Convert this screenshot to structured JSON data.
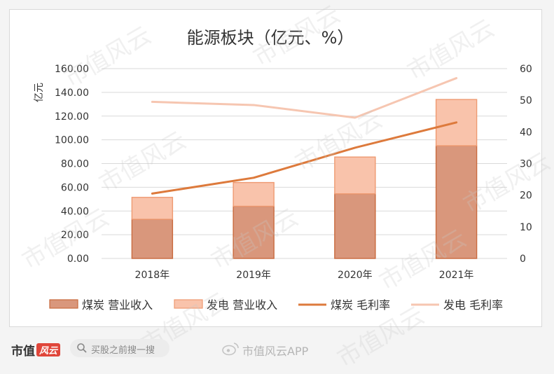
{
  "chart_data": {
    "type": "bar+line",
    "title": "能源板块（亿元、%）",
    "ylabel": "亿元",
    "ylim": [
      0,
      160
    ],
    "y2lim": [
      0,
      60
    ],
    "yticks": [
      "0.00",
      "20.00",
      "40.00",
      "60.00",
      "80.00",
      "100.00",
      "120.00",
      "140.00",
      "160.00"
    ],
    "y2ticks": [
      "0",
      "10",
      "20",
      "30",
      "40",
      "50",
      "60"
    ],
    "categories": [
      "2018年",
      "2019年",
      "2020年",
      "2021年"
    ],
    "bar_series": [
      {
        "name": "煤炭 营业收入",
        "values": [
          33,
          44,
          54.5,
          95
        ],
        "color": "#d9977c",
        "stroke": "#c96a3e"
      },
      {
        "name": "发电 营业收入",
        "values": [
          18.5,
          20,
          31,
          39
        ],
        "color": "#f9c3ab",
        "stroke": "#ee9a72"
      }
    ],
    "line_series": [
      {
        "name": "煤炭 毛利率",
        "values": [
          20.5,
          25.5,
          35,
          43
        ],
        "color": "#dd7a3c",
        "axis": "right"
      },
      {
        "name": "发电 毛利率",
        "values": [
          49.5,
          48.5,
          44.5,
          57
        ],
        "color": "#f6c6b1",
        "axis": "right"
      }
    ],
    "legend_position": "bottom",
    "grid": true
  },
  "watermark": "市值风云",
  "footer": {
    "brand": "市值",
    "brand_mark": "风云",
    "search_placeholder": "买股之前搜一搜",
    "weibo_label": "市值风云APP"
  },
  "colors": {
    "axis_text": "#333333",
    "grid": "#d9d9d9"
  }
}
